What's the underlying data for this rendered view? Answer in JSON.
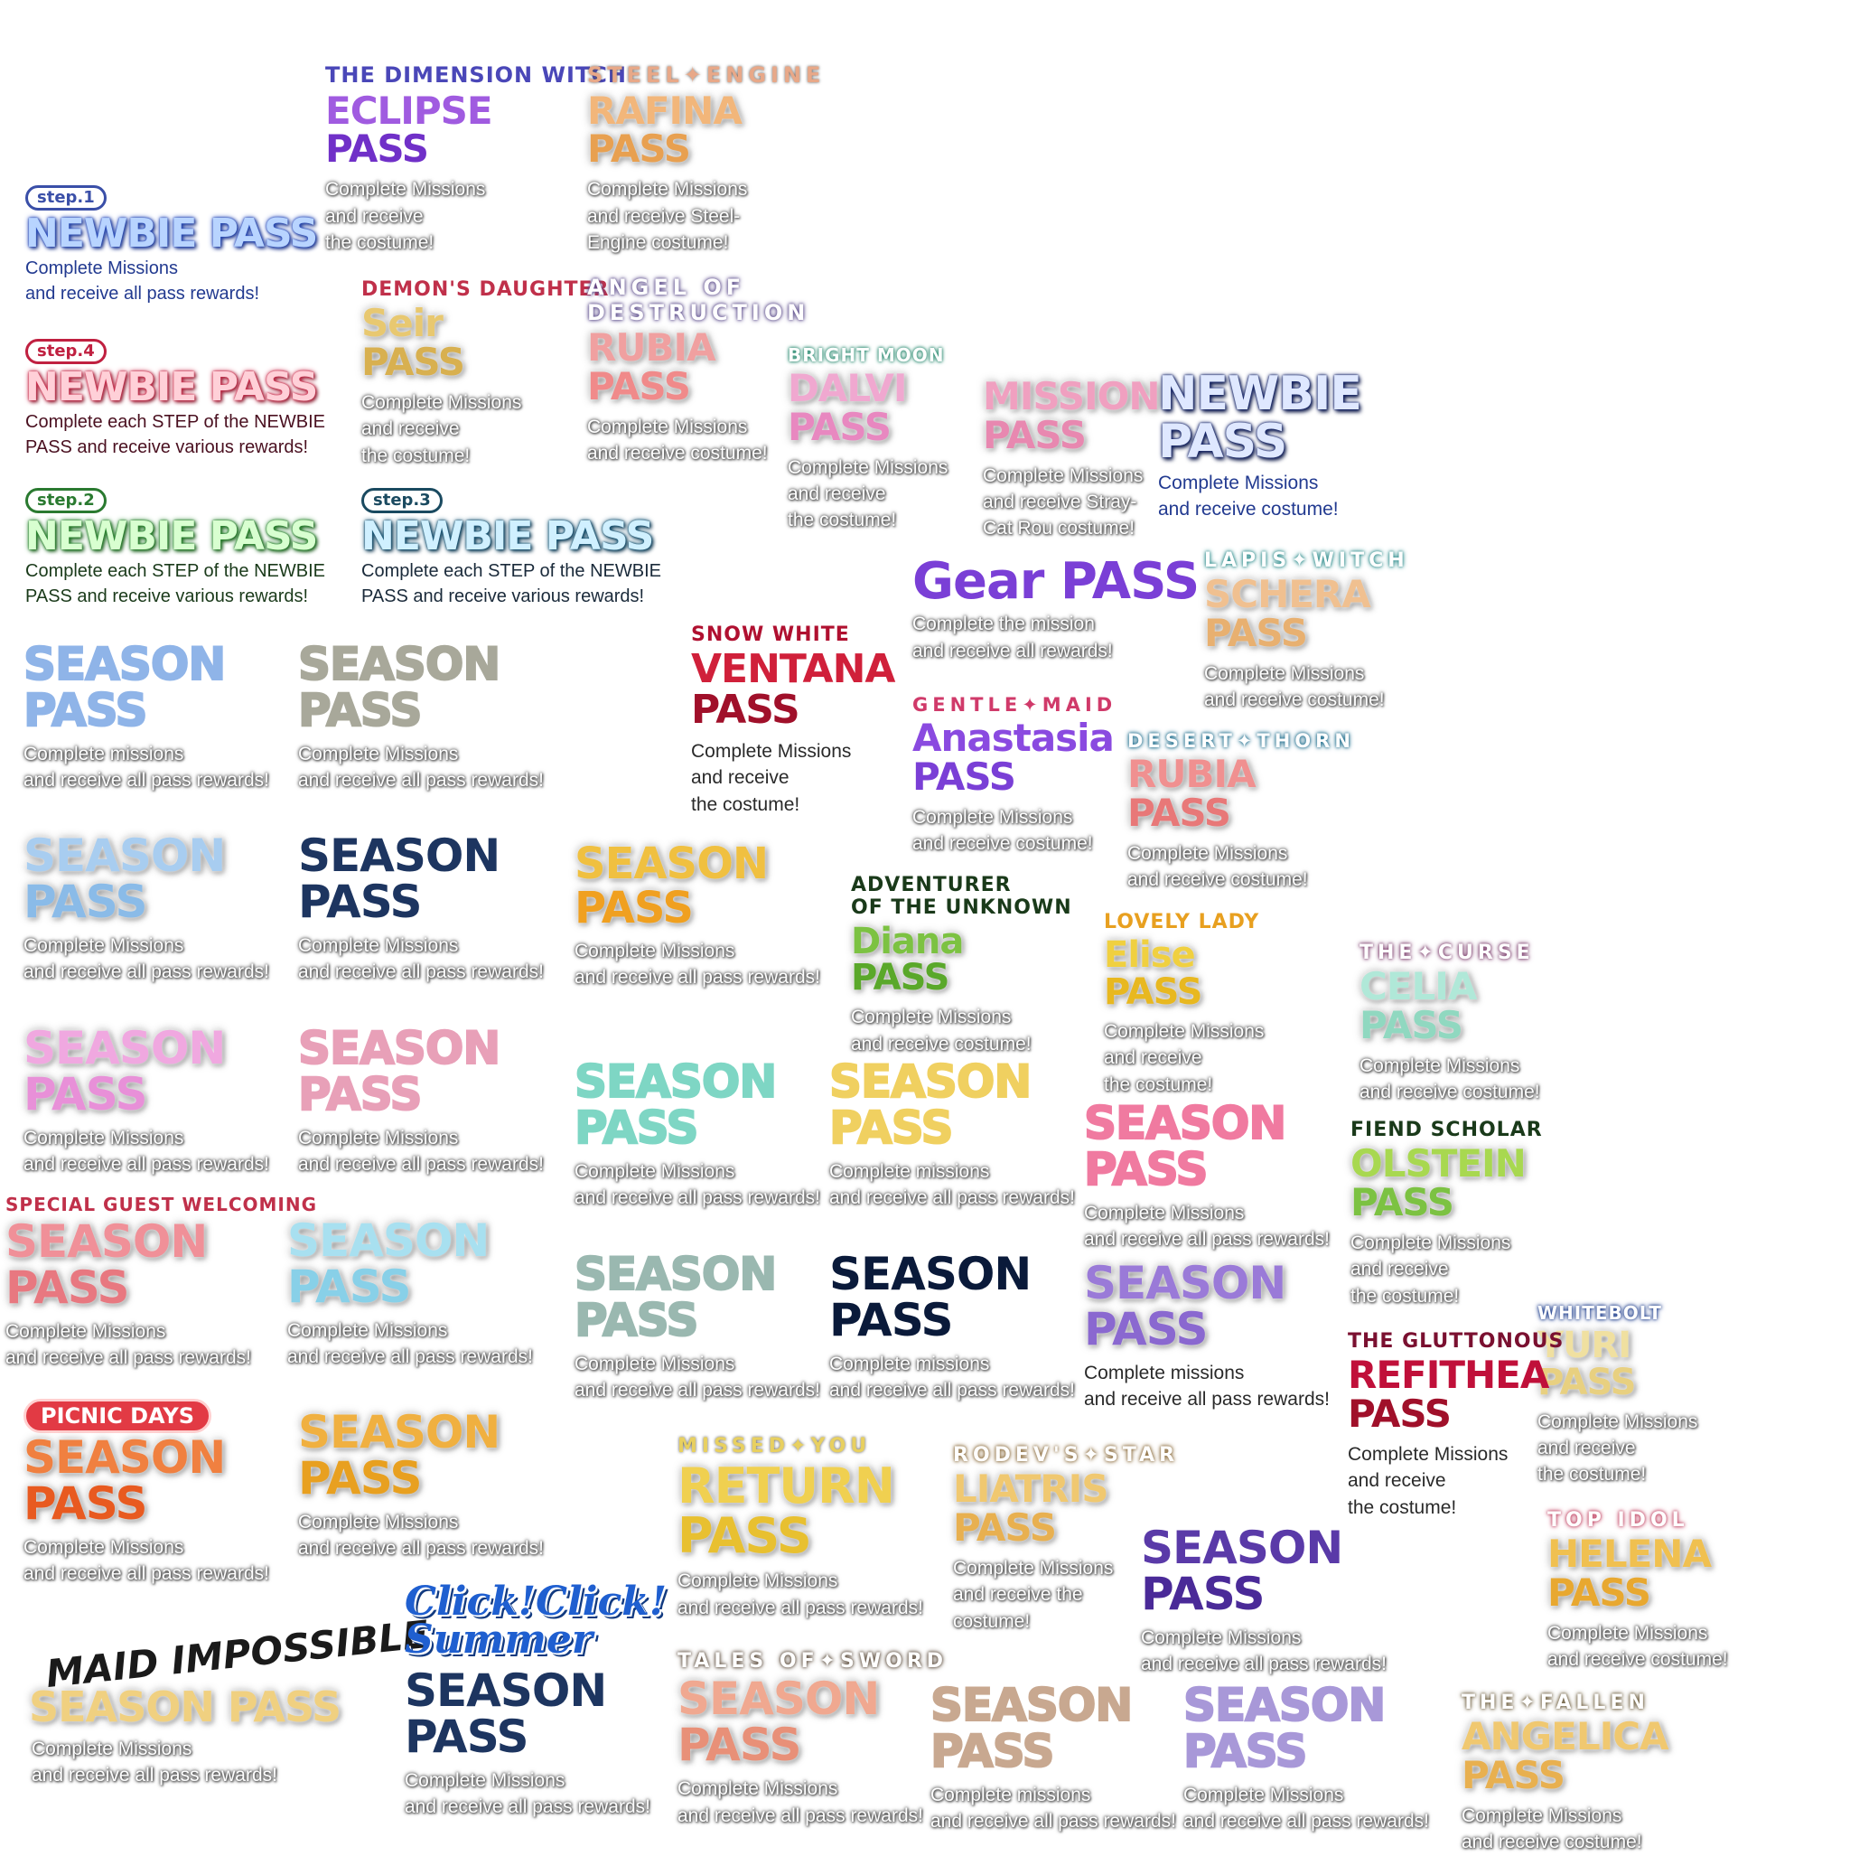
{
  "banners": [
    {
      "id": "eclipse",
      "sub": "THE DIMENSION WITCH",
      "title": "ECLIPSE",
      "title2": "PASS",
      "desc": "Complete Missions\nand receive\nthe costume!"
    },
    {
      "id": "rafina",
      "sub": "STEEL✦ENGINE",
      "title": "RAFINA",
      "title2": "PASS",
      "desc": "Complete Missions\nand receive Steel-\nEngine costume!"
    },
    {
      "id": "step1",
      "badge": "step.1",
      "title": "NEWBIE PASS",
      "desc": "Complete Missions\nand receive all pass rewards!"
    },
    {
      "id": "seir",
      "sub": "DEMON'S DAUGHTER",
      "title": "Seir",
      "title2": "PASS",
      "desc": "Complete Missions\nand receive\nthe costume!"
    },
    {
      "id": "rubia1",
      "sub": "ANGEL OF\nDESTRUCTION",
      "title": "RUBIA",
      "title2": "PASS",
      "desc": "Complete Missions\nand receive costume!"
    },
    {
      "id": "step4",
      "badge": "step.4",
      "title": "NEWBIE PASS",
      "desc": "Complete each STEP of the NEWBIE\nPASS and receive various rewards!"
    },
    {
      "id": "dalvi",
      "sub": "BRIGHT MOON",
      "title": "DALVI",
      "title2": "PASS",
      "desc": "Complete Missions\nand receive\nthe costume!"
    },
    {
      "id": "mission",
      "title": "MISSION",
      "title2": "PASS",
      "desc": "Complete Missions\nand receive Stray-\nCat Rou costume!"
    },
    {
      "id": "newbie_big",
      "title": "NEWBIE",
      "title2": "PASS",
      "desc": "Complete Missions\nand receive costume!"
    },
    {
      "id": "step2",
      "badge": "step.2",
      "title": "NEWBIE PASS",
      "desc": "Complete each STEP of the NEWBIE\nPASS and receive various rewards!"
    },
    {
      "id": "step3",
      "badge": "step.3",
      "title": "NEWBIE PASS",
      "desc": "Complete each STEP of the NEWBIE\nPASS and receive various rewards!"
    },
    {
      "id": "gear",
      "title": "Gear PASS",
      "desc": "Complete the mission\nand receive all rewards!"
    },
    {
      "id": "schera",
      "sub": "LAPIS✦WITCH",
      "title": "SCHERA",
      "title2": "PASS",
      "desc": "Complete Missions\nand receive costume!"
    },
    {
      "id": "sp1",
      "title": "SEASON",
      "title2": "PASS",
      "desc": "Complete missions\nand receive all pass rewards!"
    },
    {
      "id": "sp2",
      "title": "SEASON",
      "title2": "PASS",
      "desc": "Complete Missions\nand receive all pass rewards!"
    },
    {
      "id": "ventana",
      "sub": "SNOW WHITE",
      "title": "VENTANA",
      "title2": "PASS",
      "desc": "Complete Missions\nand receive\nthe costume!"
    },
    {
      "id": "anastasia",
      "sub": "GENTLE✦MAID",
      "title": "Anastasia",
      "title2": "PASS",
      "desc": "Complete Missions\nand receive costume!"
    },
    {
      "id": "rubia2",
      "sub": "DESERT✦THORN",
      "title": "RUBIA",
      "title2": "PASS",
      "desc": "Complete Missions\nand receive costume!"
    },
    {
      "id": "sp3",
      "title": "SEASON",
      "title2": "PASS",
      "desc": "Complete Missions\nand receive all pass rewards!"
    },
    {
      "id": "sp4",
      "title": "SEASON",
      "title2": "PASS",
      "desc": "Complete Missions\nand receive all pass rewards!"
    },
    {
      "id": "sp5",
      "title": "SEASON",
      "title2": "PASS",
      "desc": "Complete Missions\nand receive all pass rewards!"
    },
    {
      "id": "diana",
      "sub": "ADVENTURER\nOF THE UNKNOWN",
      "title": "Diana",
      "title2": "PASS",
      "desc": "Complete Missions\nand receive costume!"
    },
    {
      "id": "elise",
      "sub": "LOVELY LADY",
      "title": "Elise",
      "title2": "PASS",
      "desc": "Complete Missions\nand receive\nthe costume!"
    },
    {
      "id": "celia",
      "sub": "THE✦CURSE",
      "title": "CELIA",
      "title2": "PASS",
      "desc": "Complete Missions\nand receive costume!"
    },
    {
      "id": "sp6",
      "title": "SEASON",
      "title2": "PASS",
      "desc": "Complete Missions\nand receive all pass rewards!"
    },
    {
      "id": "sp7",
      "title": "SEASON",
      "title2": "PASS",
      "desc": "Complete Missions\nand receive all pass rewards!"
    },
    {
      "id": "sp8",
      "title": "SEASON",
      "title2": "PASS",
      "desc": "Complete Missions\nand receive all pass rewards!"
    },
    {
      "id": "sp9",
      "title": "SEASON",
      "title2": "PASS",
      "desc": "Complete missions\nand receive all pass rewards!"
    },
    {
      "id": "sp10",
      "title": "SEASON",
      "title2": "PASS",
      "desc": "Complete Missions\nand receive all pass rewards!"
    },
    {
      "id": "olstein",
      "sub": "FIEND SCHOLAR",
      "title": "OLSTEIN",
      "title2": "PASS",
      "desc": "Complete Missions\nand receive\nthe costume!"
    },
    {
      "id": "sp11",
      "sub": "SPECIAL GUEST WELCOMING",
      "title": "SEASON",
      "title2": "PASS",
      "desc": "Complete Missions\nand receive all pass rewards!"
    },
    {
      "id": "sp12",
      "title": "SEASON",
      "title2": "PASS",
      "desc": "Complete Missions\nand receive all pass rewards!"
    },
    {
      "id": "sp13",
      "title": "SEASON",
      "title2": "PASS",
      "desc": "Complete Missions\nand receive all pass rewards!"
    },
    {
      "id": "sp14",
      "title": "SEASON",
      "title2": "PASS",
      "desc": "Complete missions\nand receive all pass rewards!"
    },
    {
      "id": "sp15",
      "title": "SEASON",
      "title2": "PASS",
      "desc": "Complete missions\nand receive all pass rewards!"
    },
    {
      "id": "yuri",
      "sub": "WHITEBOLT",
      "title": "YURI",
      "title2": "PASS",
      "desc": "Complete Missions\nand receive\nthe costume!"
    },
    {
      "id": "refithea",
      "sub": "THE GLUTTONOUS",
      "title": "REFITHEA",
      "title2": "PASS",
      "desc": "Complete Missions\nand receive\nthe costume!"
    },
    {
      "id": "picnic",
      "logo": "PICNIC DAYS",
      "title": "SEASON",
      "title2": "PASS",
      "desc": "Complete Missions\nand receive all pass rewards!"
    },
    {
      "id": "sp16",
      "title": "SEASON",
      "title2": "PASS",
      "desc": "Complete Missions\nand receive all pass rewards!"
    },
    {
      "id": "return",
      "sub": "MISSED✦YOU",
      "title": "RETURN",
      "title2": "PASS",
      "desc": "Complete Missions\nand receive all pass rewards!"
    },
    {
      "id": "liatris",
      "sub": "RODEV'S✦STAR",
      "title": "LIATRIS",
      "title2": "PASS",
      "desc": "Complete Missions\nand receive the\ncostume!"
    },
    {
      "id": "sp17",
      "title": "SEASON",
      "title2": "PASS",
      "desc": "Complete Missions\nand receive all pass rewards!"
    },
    {
      "id": "helena",
      "sub": "TOP IDOL",
      "title": "HELENA",
      "title2": "PASS",
      "desc": "Complete Missions\nand receive costume!"
    },
    {
      "id": "maid",
      "logo": "MAID IMPOSSIBLE",
      "title": "SEASON PASS",
      "desc": "Complete Missions\nand receive all pass rewards!"
    },
    {
      "id": "summer",
      "logo": "Click!Click!\nSummer",
      "title": "SEASON",
      "title2": "PASS",
      "desc": "Complete Missions\nand receive all pass rewards!"
    },
    {
      "id": "tales",
      "sub": "TALES OF✦SWORD",
      "title": "SEASON",
      "title2": "PASS",
      "desc": "Complete Missions\nand receive all pass rewards!"
    },
    {
      "id": "sp18",
      "title": "SEASON",
      "title2": "PASS",
      "desc": "Complete missions\nand receive all pass rewards!"
    },
    {
      "id": "sp19",
      "title": "SEASON",
      "title2": "PASS",
      "desc": "Complete Missions\nand receive all pass rewards!"
    },
    {
      "id": "angelica",
      "sub": "THE✦FALLEN",
      "title": "ANGELICA",
      "title2": "PASS",
      "desc": "Complete Missions\nand receive costume!"
    }
  ],
  "colors": {
    "purple": "#7a3fd6",
    "gold": "#e8b24a",
    "navy": "#1d3560",
    "crimson": "#b3123a",
    "pink": "#f07aa0",
    "teal": "#7ed6c4",
    "green": "#7cc242"
  }
}
